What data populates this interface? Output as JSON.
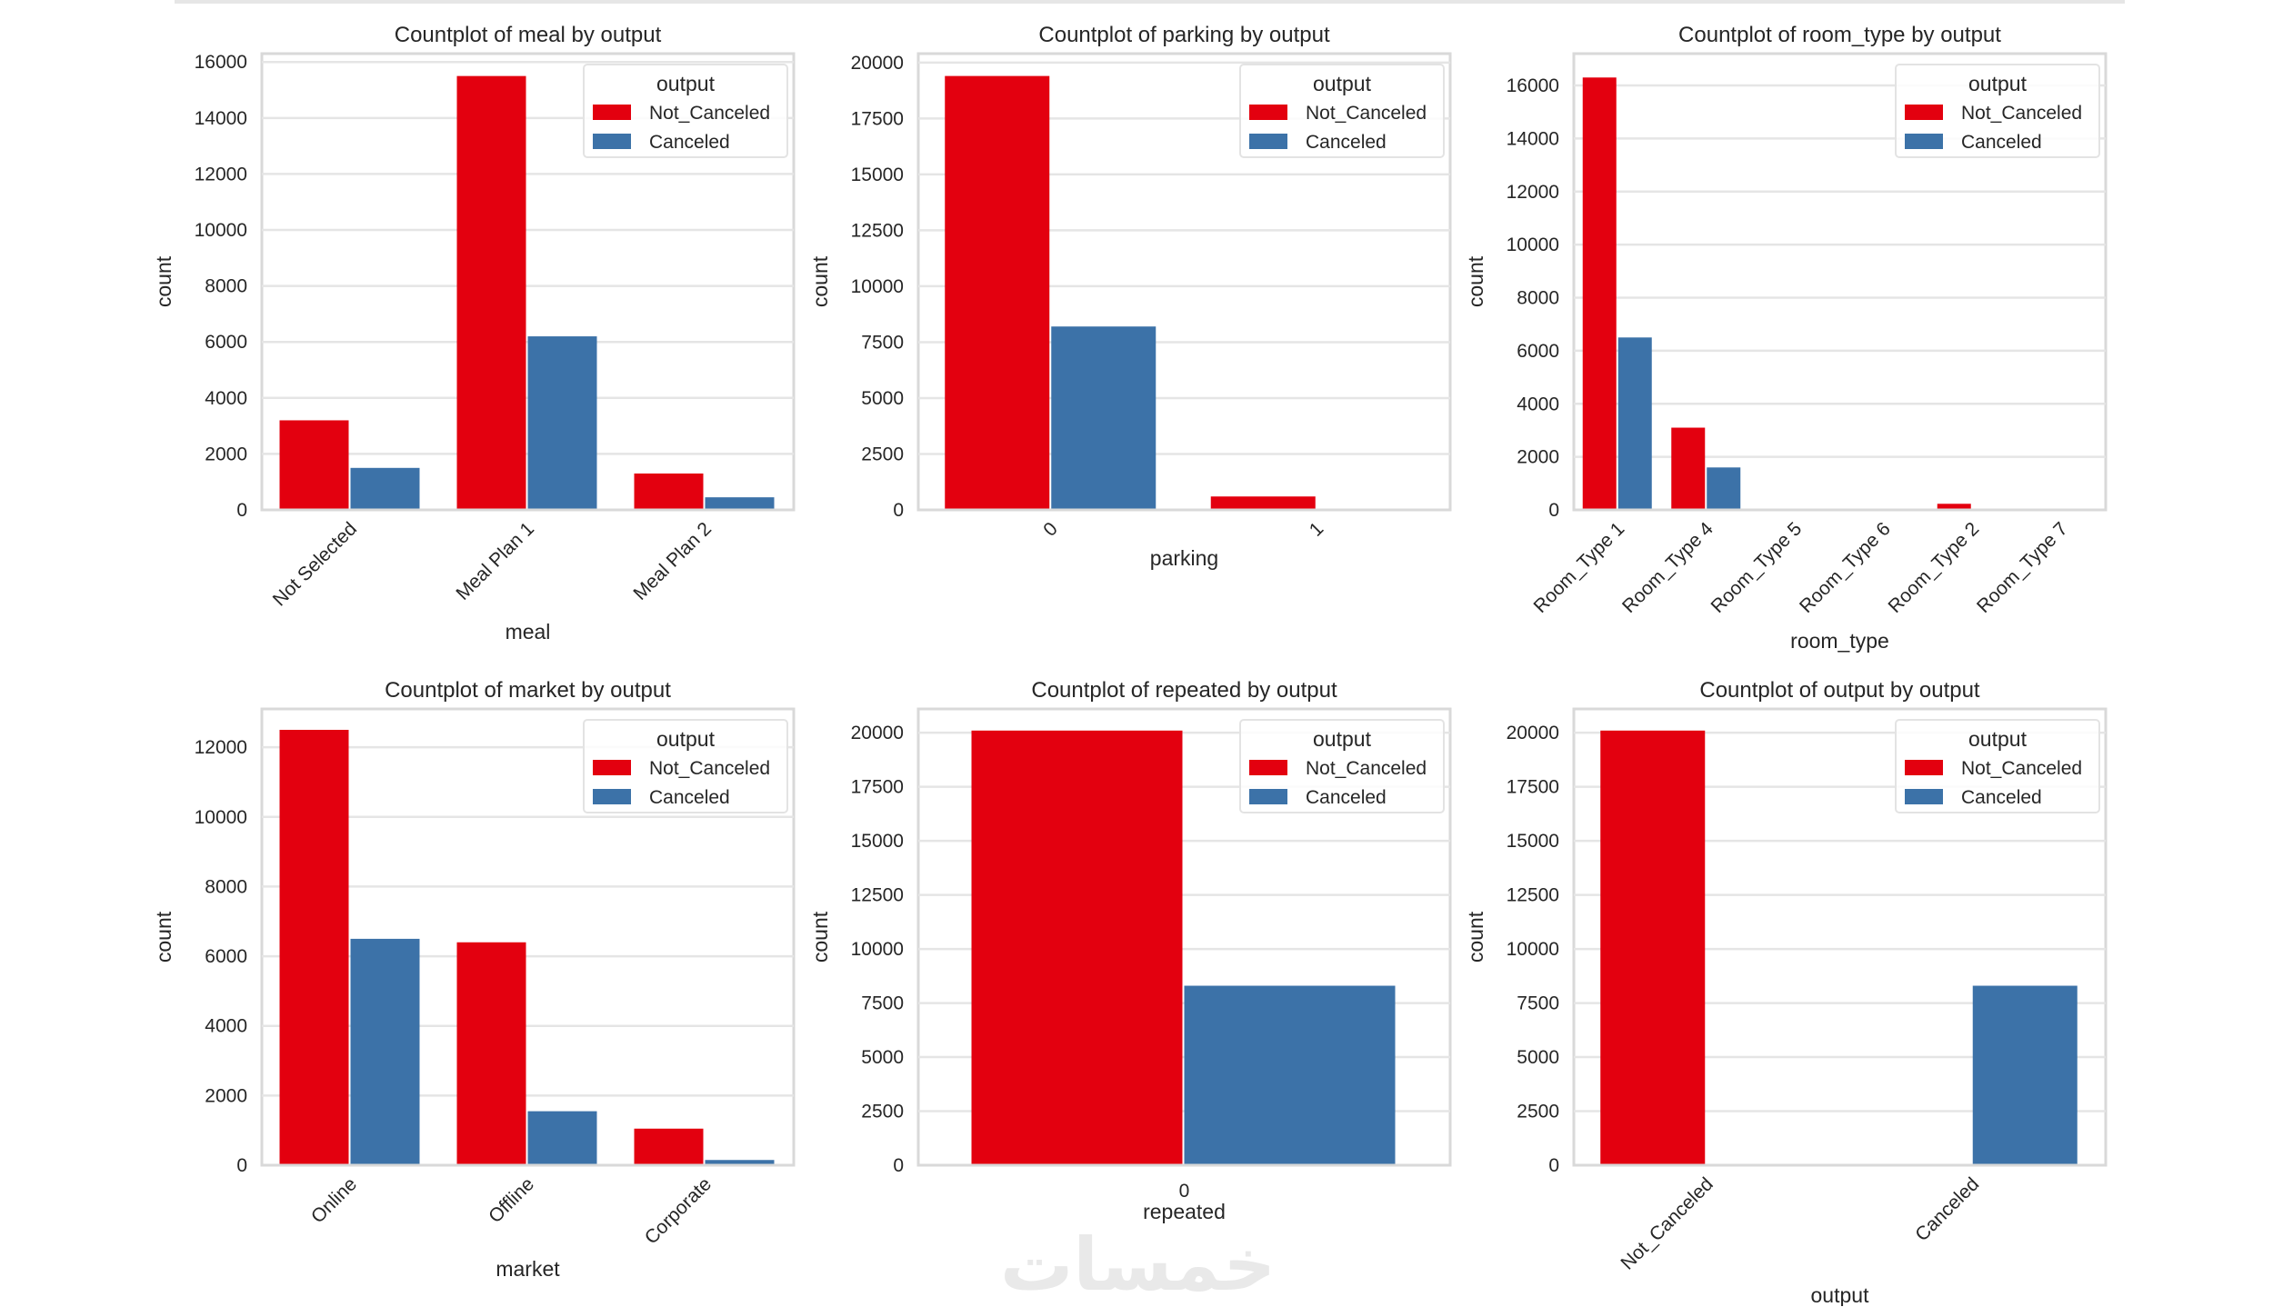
{
  "colors": {
    "Not_Canceled": "#e3000f",
    "Canceled": "#3c72a8",
    "grid": "#e5e5e5",
    "frame": "#d9d9d9"
  },
  "watermark": {
    "logo_text": "خمسات"
  },
  "chart_data": [
    {
      "type": "bar",
      "title": "Countplot of meal by output",
      "xlabel": "meal",
      "ylabel": "count",
      "categories": [
        "Not Selected",
        "Meal Plan 1",
        "Meal Plan 2"
      ],
      "series": [
        {
          "name": "Not_Canceled",
          "values": [
            3200,
            15500,
            1300
          ]
        },
        {
          "name": "Canceled",
          "values": [
            1500,
            6200,
            450
          ]
        }
      ],
      "ylim": [
        0,
        16300
      ],
      "yticks": [
        0,
        2000,
        4000,
        6000,
        8000,
        10000,
        12000,
        14000,
        16000
      ],
      "legend": {
        "title": "output",
        "placement": "top-right"
      },
      "grid": true,
      "xtick_rotation": 45
    },
    {
      "type": "bar",
      "title": "Countplot of parking by output",
      "xlabel": "parking",
      "ylabel": "count",
      "categories": [
        "0",
        "1"
      ],
      "series": [
        {
          "name": "Not_Canceled",
          "values": [
            19400,
            600
          ]
        },
        {
          "name": "Canceled",
          "values": [
            8200,
            30
          ]
        }
      ],
      "ylim": [
        0,
        20400
      ],
      "yticks": [
        0,
        2500,
        5000,
        7500,
        10000,
        12500,
        15000,
        17500,
        20000
      ],
      "legend": {
        "title": "output",
        "placement": "top-right"
      },
      "grid": true,
      "xtick_rotation": 45
    },
    {
      "type": "bar",
      "title": "Countplot of room_type by output",
      "xlabel": "room_type",
      "ylabel": "count",
      "categories": [
        "Room_Type 1",
        "Room_Type 4",
        "Room_Type 5",
        "Room_Type 6",
        "Room_Type 2",
        "Room_Type 7"
      ],
      "series": [
        {
          "name": "Not_Canceled",
          "values": [
            16300,
            3100,
            0,
            0,
            230,
            0
          ]
        },
        {
          "name": "Canceled",
          "values": [
            6500,
            1600,
            0,
            0,
            0,
            0
          ]
        }
      ],
      "ylim": [
        0,
        17200
      ],
      "yticks": [
        0,
        2000,
        4000,
        6000,
        8000,
        10000,
        12000,
        14000,
        16000
      ],
      "legend": {
        "title": "output",
        "placement": "top-right"
      },
      "grid": true,
      "xtick_rotation": 45
    },
    {
      "type": "bar",
      "title": "Countplot of market by output",
      "xlabel": "market",
      "ylabel": "count",
      "categories": [
        "Online",
        "Offline",
        "Corporate"
      ],
      "series": [
        {
          "name": "Not_Canceled",
          "values": [
            12500,
            6400,
            1050
          ]
        },
        {
          "name": "Canceled",
          "values": [
            6500,
            1550,
            150
          ]
        }
      ],
      "ylim": [
        0,
        13100
      ],
      "yticks": [
        0,
        2000,
        4000,
        6000,
        8000,
        10000,
        12000
      ],
      "legend": {
        "title": "output",
        "placement": "top-right"
      },
      "grid": true,
      "xtick_rotation": 45
    },
    {
      "type": "bar",
      "title": "Countplot of repeated by output",
      "xlabel": "repeated",
      "ylabel": "count",
      "categories": [
        "0"
      ],
      "series": [
        {
          "name": "Not_Canceled",
          "values": [
            20100
          ]
        },
        {
          "name": "Canceled",
          "values": [
            8300
          ]
        }
      ],
      "ylim": [
        0,
        21100
      ],
      "yticks": [
        0,
        2500,
        5000,
        7500,
        10000,
        12500,
        15000,
        17500,
        20000
      ],
      "legend": {
        "title": "output",
        "placement": "top-right"
      },
      "grid": true,
      "xtick_rotation": 0
    },
    {
      "type": "bar",
      "title": "Countplot of output by output",
      "xlabel": "output",
      "ylabel": "count",
      "categories": [
        "Not_Canceled",
        "Canceled"
      ],
      "series": [
        {
          "name": "Not_Canceled",
          "values": [
            20100,
            0
          ]
        },
        {
          "name": "Canceled",
          "values": [
            0,
            8300
          ]
        }
      ],
      "ylim": [
        0,
        21100
      ],
      "yticks": [
        0,
        2500,
        5000,
        7500,
        10000,
        12500,
        15000,
        17500,
        20000
      ],
      "legend": {
        "title": "output",
        "placement": "top-right"
      },
      "grid": true,
      "xtick_rotation": 45
    }
  ]
}
